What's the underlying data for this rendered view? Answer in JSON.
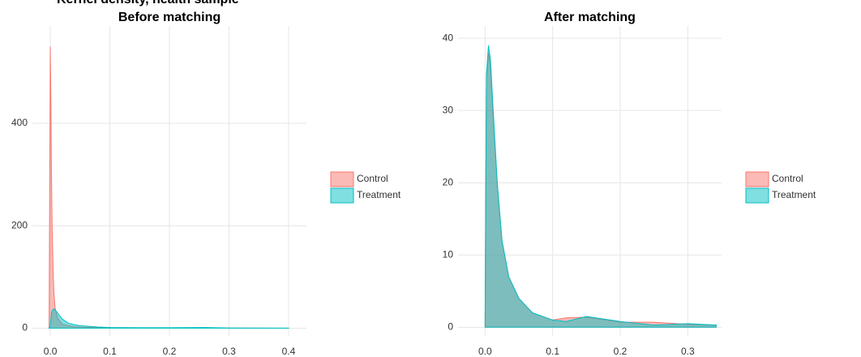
{
  "title": "Kernel density, health sample",
  "chart_data": [
    {
      "type": "area",
      "title": "Before matching",
      "x": [
        -0.002,
        0.0,
        0.001,
        0.002,
        0.003,
        0.005,
        0.006,
        0.008,
        0.012,
        0.02,
        0.03,
        0.04,
        0.05,
        0.08,
        0.1,
        0.15,
        0.2,
        0.26,
        0.3,
        0.4
      ],
      "series": [
        {
          "name": "Control",
          "color": "#f8766d",
          "values": [
            0,
            550,
            440,
            300,
            200,
            100,
            70,
            40,
            20,
            8,
            5,
            3,
            2,
            1.2,
            1,
            0.8,
            0.5,
            0.5,
            0.3,
            0.1
          ]
        },
        {
          "name": "Treatment",
          "color": "#00bfc4",
          "values": [
            0,
            5,
            15,
            30,
            34,
            37,
            38,
            36,
            30,
            18,
            10,
            7,
            5,
            2.5,
            1.5,
            1,
            1,
            1.5,
            0.5,
            0.2
          ]
        }
      ],
      "xlim": [
        -0.03,
        0.43
      ],
      "ylim": [
        -15,
        590
      ],
      "xticks": [
        {
          "value": 0,
          "label": "0.0"
        },
        0.1,
        0.2,
        0.3,
        0.4
      ],
      "yticks": [
        0,
        200,
        400
      ],
      "grid": true,
      "legend": "right"
    },
    {
      "type": "area",
      "title": "After matching",
      "x": [
        0.0,
        0.002,
        0.005,
        0.008,
        0.012,
        0.018,
        0.025,
        0.035,
        0.05,
        0.07,
        0.1,
        0.12,
        0.15,
        0.2,
        0.25,
        0.3,
        0.342
      ],
      "series": [
        {
          "name": "Control",
          "color": "#f8766d",
          "values": [
            0,
            34,
            38,
            36,
            29,
            20,
            12,
            7,
            4,
            2,
            1,
            1.3,
            1.4,
            0.7,
            0.7,
            0.4,
            0.3
          ]
        },
        {
          "name": "Treatment",
          "color": "#00bfc4",
          "values": [
            0,
            35,
            39,
            37,
            30,
            20,
            12,
            7,
            4,
            2,
            1,
            0.8,
            1.5,
            0.8,
            0.3,
            0.5,
            0.3
          ]
        }
      ],
      "xlim": [
        -0.04,
        0.35
      ],
      "ylim": [
        -1.2,
        41.7
      ],
      "xticks": [
        {
          "value": 0,
          "label": "0.0"
        },
        0.1,
        0.2,
        0.3
      ],
      "yticks": [
        0,
        10,
        20,
        30,
        40
      ],
      "grid": true,
      "legend": "right"
    }
  ]
}
